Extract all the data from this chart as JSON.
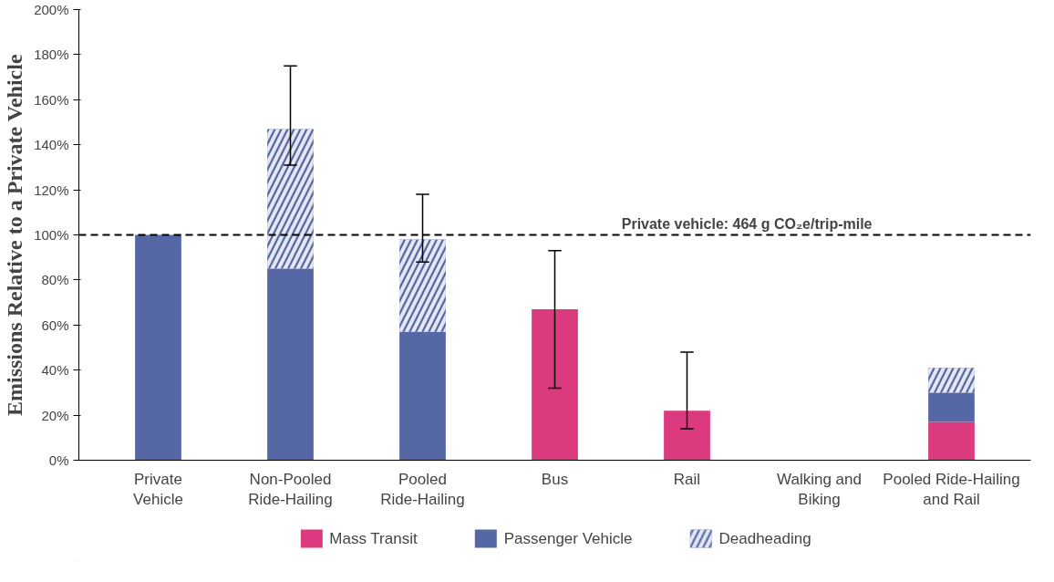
{
  "chart_data": {
    "type": "bar",
    "stacked": true,
    "ylabel": "Emissions Relative to a Private Vehicle",
    "categories": [
      "Private Vehicle",
      "Non-Pooled Ride-Hailing",
      "Pooled Ride-Hailing",
      "Bus",
      "Rail",
      "Walking and Biking",
      "Pooled Ride-Hailing and Rail"
    ],
    "series": [
      {
        "name": "Mass Transit",
        "color": "#dc3a7f",
        "values": [
          0,
          0,
          0,
          67,
          22,
          0,
          17
        ],
        "errors": [
          null,
          null,
          null,
          [
            32,
            93
          ],
          [
            14,
            48
          ],
          null,
          null
        ]
      },
      {
        "name": "Passenger Vehicle",
        "color": "#5667a6",
        "values": [
          100,
          85,
          57,
          0,
          0,
          0,
          13
        ]
      },
      {
        "name": "Deadheading",
        "color": "#5667a6",
        "values": [
          0,
          62,
          41,
          0,
          0,
          0,
          11
        ],
        "errors": [
          null,
          [
            131,
            175
          ],
          [
            88,
            118
          ],
          null,
          null,
          null,
          null
        ]
      }
    ],
    "ylim": [
      0,
      200
    ],
    "yticks": [
      {
        "value": 0,
        "label": "0%"
      },
      {
        "value": 20,
        "label": "20%"
      },
      {
        "value": 40,
        "label": "40%"
      },
      {
        "value": 60,
        "label": "60%"
      },
      {
        "value": 80,
        "label": "80%"
      },
      {
        "value": 100,
        "label": "100%"
      },
      {
        "value": 120,
        "label": "120%"
      },
      {
        "value": 140,
        "label": "140%"
      },
      {
        "value": 160,
        "label": "160%"
      },
      {
        "value": 180,
        "label": "180%"
      },
      {
        "value": 200,
        "label": "200%"
      }
    ],
    "ref_lines": [
      {
        "axis": "y",
        "value": 100,
        "color": "#000000",
        "line_style": "dashed"
      }
    ],
    "annotations": [
      {
        "text": "Private vehicle: 464 g CO₂e/trip-mile",
        "y": 100
      }
    ],
    "grid": false,
    "legend": "bottom"
  }
}
